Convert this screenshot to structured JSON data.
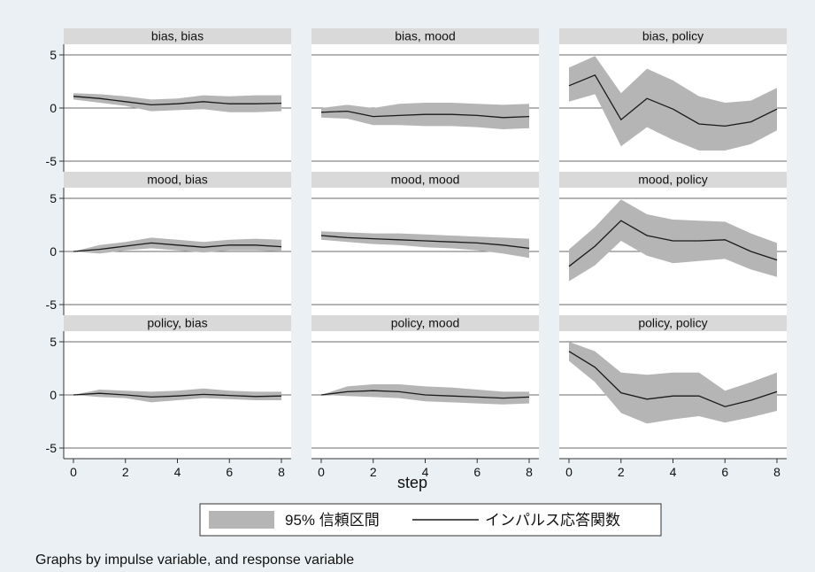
{
  "chart_data": {
    "type": "line",
    "title": "",
    "xlabel": "step",
    "ylabel": "",
    "x": [
      0,
      1,
      2,
      3,
      4,
      5,
      6,
      7,
      8
    ],
    "xticks": [
      0,
      2,
      4,
      6,
      8
    ],
    "yticks": [
      -5,
      0,
      5
    ],
    "ylim": [
      -6,
      6
    ],
    "grid": true,
    "legend": {
      "position": "bottom",
      "band_label": "95% 信頼区間",
      "line_label": "インパルス応答関数"
    },
    "note": "Graphs by impulse variable, and response variable",
    "colors": {
      "band": "#b5b5b5",
      "line": "#1a1a1a",
      "background": "#eaf0f3",
      "plot_area": "#ffffff",
      "header": "#d9d9d9"
    },
    "panels": [
      {
        "title": "bias, bias",
        "irf": [
          1.1,
          0.9,
          0.6,
          0.3,
          0.4,
          0.6,
          0.4,
          0.4,
          0.45
        ],
        "lower": [
          0.8,
          0.5,
          0.2,
          -0.3,
          -0.2,
          -0.1,
          -0.4,
          -0.4,
          -0.3
        ],
        "upper": [
          1.4,
          1.3,
          1.1,
          0.8,
          0.9,
          1.2,
          1.1,
          1.2,
          1.2
        ]
      },
      {
        "title": "bias, mood",
        "irf": [
          -0.4,
          -0.3,
          -0.8,
          -0.7,
          -0.6,
          -0.6,
          -0.7,
          -0.9,
          -0.8
        ],
        "lower": [
          -0.9,
          -1.0,
          -1.6,
          -1.6,
          -1.7,
          -1.7,
          -1.8,
          -2.0,
          -1.9
        ],
        "upper": [
          0.0,
          0.3,
          0.0,
          0.4,
          0.5,
          0.5,
          0.4,
          0.3,
          0.4
        ]
      },
      {
        "title": "bias, policy",
        "irf": [
          2.1,
          3.1,
          -1.1,
          0.9,
          -0.1,
          -1.5,
          -1.7,
          -1.3,
          -0.1
        ],
        "lower": [
          0.6,
          1.3,
          -3.6,
          -1.8,
          -3.0,
          -4.0,
          -4.0,
          -3.4,
          -2.1
        ],
        "upper": [
          3.8,
          4.9,
          1.4,
          3.7,
          2.6,
          1.1,
          0.5,
          0.7,
          1.9
        ]
      },
      {
        "title": "mood, bias",
        "irf": [
          0.0,
          0.2,
          0.5,
          0.8,
          0.6,
          0.4,
          0.6,
          0.6,
          0.45
        ],
        "lower": [
          0.0,
          -0.2,
          0.1,
          0.3,
          0.1,
          -0.1,
          0.1,
          0.1,
          0.0
        ],
        "upper": [
          0.0,
          0.6,
          0.9,
          1.3,
          1.1,
          0.9,
          1.1,
          1.2,
          1.1
        ]
      },
      {
        "title": "mood, mood",
        "irf": [
          1.5,
          1.3,
          1.2,
          1.1,
          1.0,
          0.9,
          0.8,
          0.6,
          0.3
        ],
        "lower": [
          1.1,
          0.9,
          0.7,
          0.6,
          0.4,
          0.3,
          0.1,
          -0.2,
          -0.6
        ],
        "upper": [
          1.9,
          1.8,
          1.7,
          1.7,
          1.6,
          1.5,
          1.4,
          1.3,
          1.2
        ]
      },
      {
        "title": "mood, policy",
        "irf": [
          -1.4,
          0.5,
          2.9,
          1.5,
          1.0,
          1.0,
          1.1,
          0.0,
          -0.8
        ],
        "lower": [
          -2.8,
          -1.3,
          1.0,
          -0.4,
          -1.1,
          -0.9,
          -0.7,
          -1.7,
          -2.4
        ],
        "upper": [
          0.2,
          2.3,
          4.9,
          3.5,
          3.0,
          2.9,
          2.8,
          1.7,
          0.8
        ]
      },
      {
        "title": "policy, bias",
        "irf": [
          0.0,
          0.15,
          0.0,
          -0.2,
          -0.1,
          0.05,
          -0.05,
          -0.15,
          -0.1
        ],
        "lower": [
          0.0,
          -0.2,
          -0.3,
          -0.7,
          -0.5,
          -0.3,
          -0.4,
          -0.5,
          -0.5
        ],
        "upper": [
          0.0,
          0.5,
          0.4,
          0.3,
          0.4,
          0.6,
          0.4,
          0.3,
          0.3
        ]
      },
      {
        "title": "policy, mood",
        "irf": [
          0.0,
          0.3,
          0.4,
          0.3,
          0.0,
          -0.1,
          -0.2,
          -0.3,
          -0.2
        ],
        "lower": [
          0.0,
          -0.1,
          -0.2,
          -0.3,
          -0.6,
          -0.7,
          -0.8,
          -0.9,
          -0.8
        ],
        "upper": [
          0.0,
          0.8,
          1.0,
          1.0,
          0.8,
          0.7,
          0.5,
          0.3,
          0.3
        ]
      },
      {
        "title": "policy, policy",
        "irf": [
          4.1,
          2.6,
          0.2,
          -0.4,
          -0.1,
          -0.1,
          -1.1,
          -0.5,
          0.3
        ],
        "lower": [
          3.2,
          1.2,
          -1.7,
          -2.7,
          -2.3,
          -2.0,
          -2.6,
          -2.1,
          -1.5
        ],
        "upper": [
          5.0,
          4.1,
          2.1,
          1.9,
          2.1,
          2.1,
          0.4,
          1.2,
          2.1
        ]
      }
    ]
  }
}
